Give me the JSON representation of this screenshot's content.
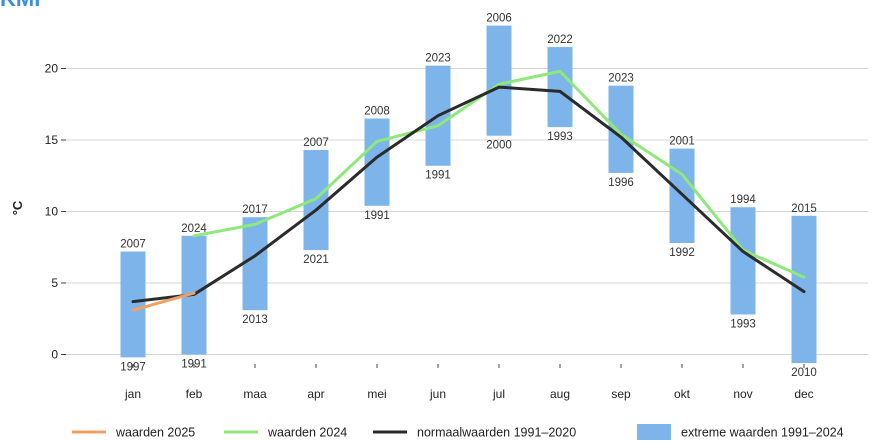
{
  "header": {
    "text": "KMI"
  },
  "chart_data": {
    "type": "bar",
    "ylabel": "°C",
    "xlabel": "",
    "ylim": [
      -1,
      22
    ],
    "yticks": [
      0,
      5,
      10,
      15,
      20
    ],
    "grid": true,
    "categories": [
      "jan",
      "feb",
      "maa",
      "apr",
      "mei",
      "jun",
      "jul",
      "aug",
      "sep",
      "okt",
      "nov",
      "dec"
    ],
    "extremes": {
      "name": "extreme waarden 1991–2024",
      "color": "#7db4ea",
      "min": [
        -0.2,
        0.0,
        3.1,
        7.3,
        10.4,
        13.2,
        15.3,
        15.9,
        12.7,
        7.8,
        2.8,
        -0.6
      ],
      "max": [
        7.2,
        8.3,
        9.6,
        14.3,
        16.5,
        20.2,
        23.0,
        21.5,
        18.8,
        14.4,
        10.3,
        9.7
      ],
      "min_years": [
        "1997",
        "1991",
        "2013",
        "2021",
        "1991",
        "1991",
        "2000",
        "1993",
        "1996",
        "1992",
        "1993",
        "2010"
      ],
      "max_years": [
        "2007",
        "2024",
        "2017",
        "2007",
        "2008",
        "2023",
        "2006",
        "2022",
        "2023",
        "2001",
        "1994",
        "2015"
      ]
    },
    "series": [
      {
        "name": "waarden 2025",
        "color": "#f0a060",
        "values": [
          3.1,
          4.3,
          null,
          null,
          null,
          null,
          null,
          null,
          null,
          null,
          null,
          null
        ]
      },
      {
        "name": "waarden 2024",
        "color": "#8ee87a",
        "values": [
          null,
          8.3,
          9.1,
          10.9,
          14.9,
          16.0,
          18.9,
          19.8,
          15.4,
          12.6,
          7.3,
          5.4
        ]
      },
      {
        "name": "normaalwaarden 1991–2020",
        "color": "#2b2b2b",
        "values": [
          3.7,
          4.2,
          6.9,
          10.1,
          13.8,
          16.7,
          18.7,
          18.4,
          15.2,
          11.2,
          7.2,
          4.4
        ]
      }
    ],
    "legend_position": "bottom"
  }
}
